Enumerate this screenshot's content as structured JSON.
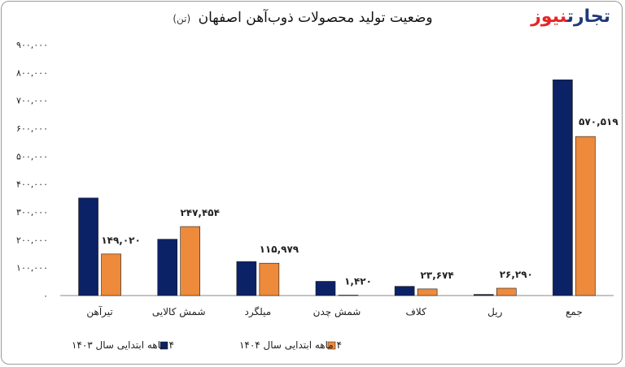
{
  "chart_data": {
    "type": "bar",
    "title": "وضعیت تولید محصولات ذوب‌آهن اصفهان",
    "unit": "(تن)",
    "categories": [
      "تیرآهن",
      "شمش کالایی",
      "میلگرد",
      "شمش چدن",
      "کلاف",
      "ریل",
      "جمع"
    ],
    "series": [
      {
        "name": "۴ ماهه ابتدایی سال ۱۴۰۳",
        "values": [
          350000,
          202000,
          122000,
          51000,
          33000,
          4000,
          774000
        ],
        "labels": [
          "",
          "",
          "",
          "",
          "",
          "",
          ""
        ]
      },
      {
        "name": "۴ ماهه ابتدایی سال ۱۴۰۴",
        "values": [
          149020,
          247454,
          115979,
          1420,
          23674,
          26290,
          570519
        ],
        "labels": [
          "۱۴۹,۰۲۰",
          "۲۴۷,۴۵۴",
          "۱۱۵,۹۷۹",
          "۱,۴۲۰",
          "۲۳,۶۷۴",
          "۲۶,۲۹۰",
          "۵۷۰,۵۱۹"
        ]
      }
    ],
    "y_ticks": [
      0,
      100000,
      200000,
      300000,
      400000,
      500000,
      600000,
      700000,
      800000,
      900000
    ],
    "y_tick_labels": [
      "۰",
      "۱۰۰,۰۰۰",
      "۲۰۰,۰۰۰",
      "۳۰۰,۰۰۰",
      "۴۰۰,۰۰۰",
      "۵۰۰,۰۰۰",
      "۶۰۰,۰۰۰",
      "۷۰۰,۰۰۰",
      "۸۰۰,۰۰۰",
      "۹۰۰,۰۰۰"
    ],
    "ylim": [
      0,
      900000
    ],
    "xlabel": "",
    "ylabel": "",
    "grid": false,
    "legend_position": "bottom",
    "colors": [
      "#0c2266",
      "#ee8a3c"
    ]
  },
  "brand": {
    "part1": "تجارت",
    "part2": "نیوز",
    "color1": "#1f3a7a",
    "color2": "#e52527"
  }
}
